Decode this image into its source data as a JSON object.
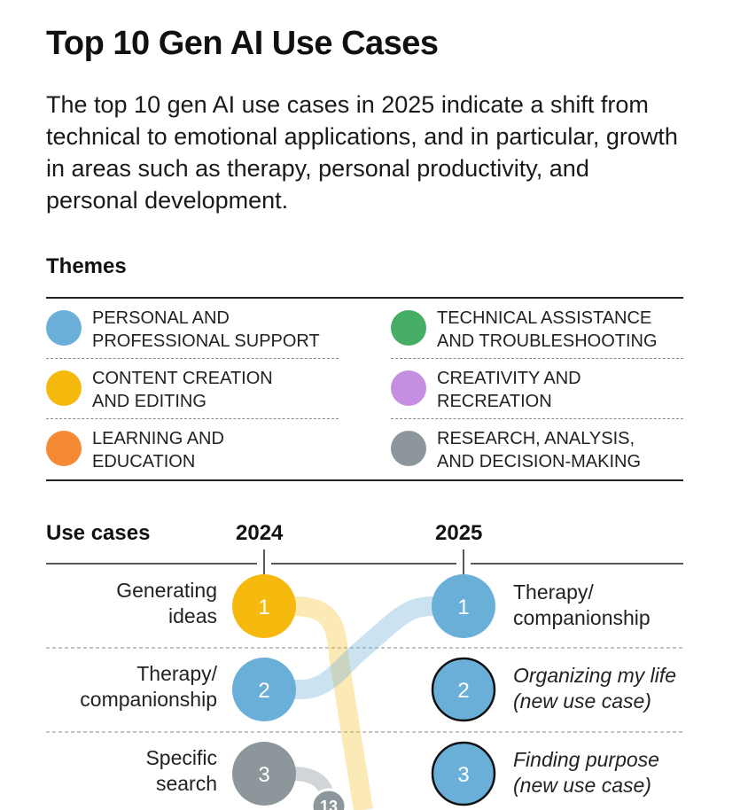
{
  "title": "Top 10 Gen AI Use Cases",
  "intro": "The top 10 gen AI use cases in 2025 indicate a shift from technical to emotional applications, and in particular, growth in areas such as therapy, personal productivity, and personal development.",
  "themes_heading": "Themes",
  "colors": {
    "personal": "#6aafd8",
    "content": "#f6b90e",
    "learning": "#f48a33",
    "technical": "#45ad64",
    "creativity": "#c58ee0",
    "research": "#8c969b"
  },
  "themes": [
    {
      "id": "personal",
      "label": "PERSONAL AND\nPROFESSIONAL SUPPORT",
      "color": "#6aafd8"
    },
    {
      "id": "content",
      "label": "CONTENT CREATION\nAND EDITING",
      "color": "#f6b90e"
    },
    {
      "id": "learning",
      "label": "LEARNING AND\nEDUCATION",
      "color": "#f48a33"
    },
    {
      "id": "technical",
      "label": "TECHNICAL ASSISTANCE\nAND TROUBLESHOOTING",
      "color": "#45ad64"
    },
    {
      "id": "creativity",
      "label": "CREATIVITY AND\nRECREATION",
      "color": "#c58ee0"
    },
    {
      "id": "research",
      "label": "RESEARCH, ANALYSIS,\nAND DECISION-MAKING",
      "color": "#8c969b"
    }
  ],
  "use_cases_heading": "Use cases",
  "year_2024": "2024",
  "year_2025": "2025",
  "rank_2024": [
    {
      "rank": "1",
      "label": "Generating\nideas",
      "theme": "content"
    },
    {
      "rank": "2",
      "label": "Therapy/\ncompanionship",
      "theme": "personal"
    },
    {
      "rank": "3",
      "label": "Specific\nsearch",
      "theme": "research"
    }
  ],
  "rank_2025": [
    {
      "rank": "1",
      "label": "Therapy/\ncompanionship",
      "theme": "personal",
      "new": false
    },
    {
      "rank": "2",
      "label": "Organizing my life\n(new use case)",
      "theme": "personal",
      "new": true
    },
    {
      "rank": "3",
      "label": "Finding purpose\n(new use case)",
      "theme": "personal",
      "new": true
    }
  ],
  "partial_badge": "13"
}
